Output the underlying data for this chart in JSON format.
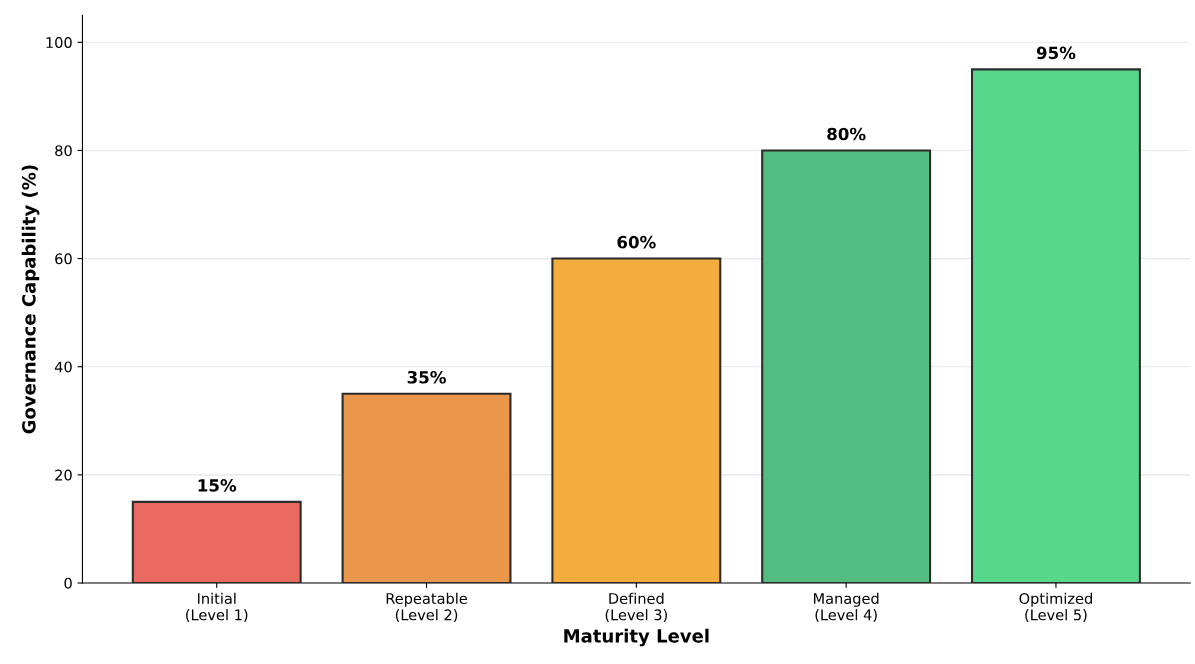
{
  "chart_data": {
    "type": "bar",
    "categories": [
      "Initial\n(Level 1)",
      "Repeatable\n(Level 2)",
      "Defined\n(Level 3)",
      "Managed\n(Level 4)",
      "Optimized\n(Level 5)"
    ],
    "values": [
      15,
      35,
      60,
      80,
      95
    ],
    "colors": [
      "#e96a5f",
      "#ea974b",
      "#f4ad3d",
      "#52bd7f",
      "#57d98d"
    ],
    "value_labels": [
      "15%",
      "35%",
      "60%",
      "80%",
      "95%"
    ],
    "xlabel": "Maturity Level",
    "ylabel": "Governance Capability (%)",
    "ylim": [
      0,
      105
    ],
    "yticks": [
      0,
      20,
      40,
      60,
      80,
      100
    ],
    "grid": "y"
  }
}
